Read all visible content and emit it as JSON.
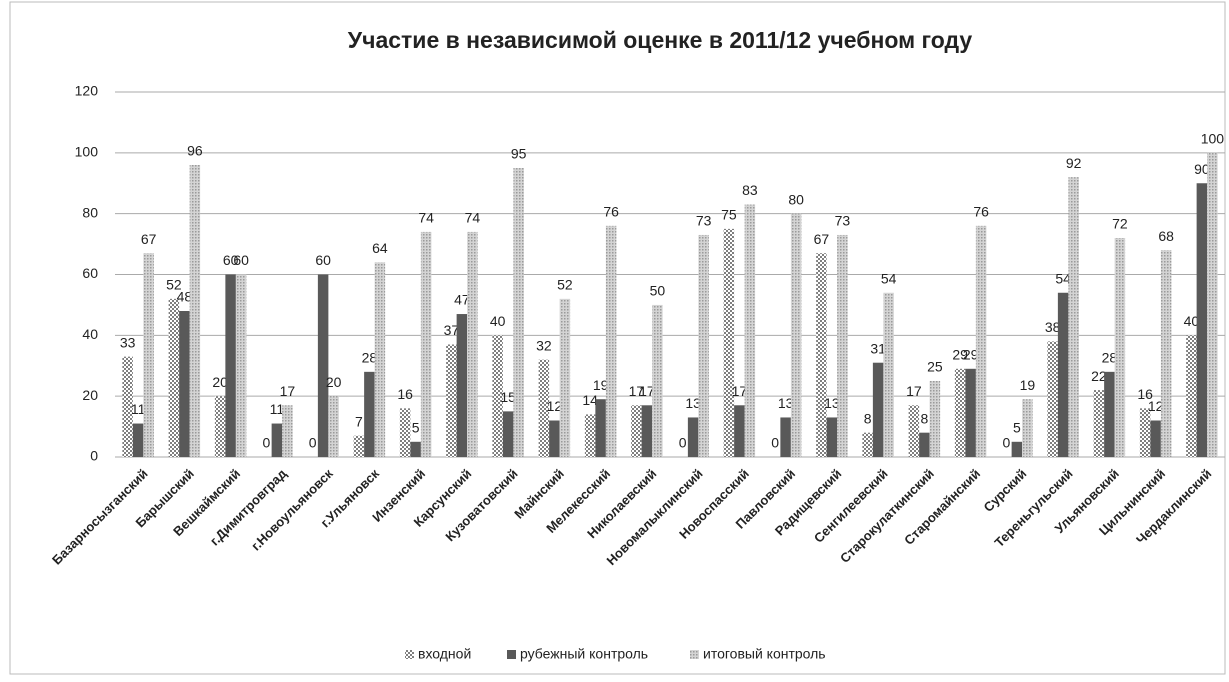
{
  "chart_data": {
    "type": "bar",
    "title": "Участие в независимой оценке в 2011/12 учебном году",
    "categories": [
      "Базарносызганский",
      "Барышский",
      "Вешкаймский",
      "г.Димитровград",
      "г.Новоульяновск",
      "г.Ульяновск",
      "Инзенский",
      "Карсунский",
      "Кузоватовский",
      "Майнский",
      "Мелекесский",
      "Николаевский",
      "Новомалыклинский",
      "Новоспасский",
      "Павловский",
      "Радищевский",
      "Сенгилеевский",
      "Старокулаткинский",
      "Старомайнский",
      "Сурский",
      "Тереньгульский",
      "Ульяновский",
      "Цильнинский",
      "Чердаклинский"
    ],
    "series": [
      {
        "name": "входной",
        "color": "#7f7f7f",
        "values": [
          33,
          52,
          20,
          0,
          0,
          7,
          16,
          37,
          40,
          32,
          14,
          17,
          0,
          75,
          0,
          67,
          8,
          17,
          29,
          0,
          38,
          22,
          16,
          40
        ]
      },
      {
        "name": "рубежный контроль",
        "color": "#595959",
        "values": [
          11,
          48,
          60,
          11,
          60,
          28,
          5,
          47,
          15,
          12,
          19,
          17,
          13,
          17,
          13,
          13,
          31,
          8,
          29,
          5,
          54,
          28,
          12,
          90
        ]
      },
      {
        "name": "итоговый контроль",
        "color": "#9a9a9a",
        "values": [
          67,
          96,
          60,
          17,
          20,
          64,
          74,
          74,
          95,
          52,
          76,
          50,
          73,
          83,
          80,
          73,
          54,
          25,
          76,
          19,
          92,
          72,
          68,
          100
        ]
      }
    ],
    "ylim": [
      0,
      120
    ],
    "yticks": [
      0,
      20,
      40,
      60,
      80,
      100,
      120
    ],
    "grid": true,
    "legend": "bottom"
  }
}
